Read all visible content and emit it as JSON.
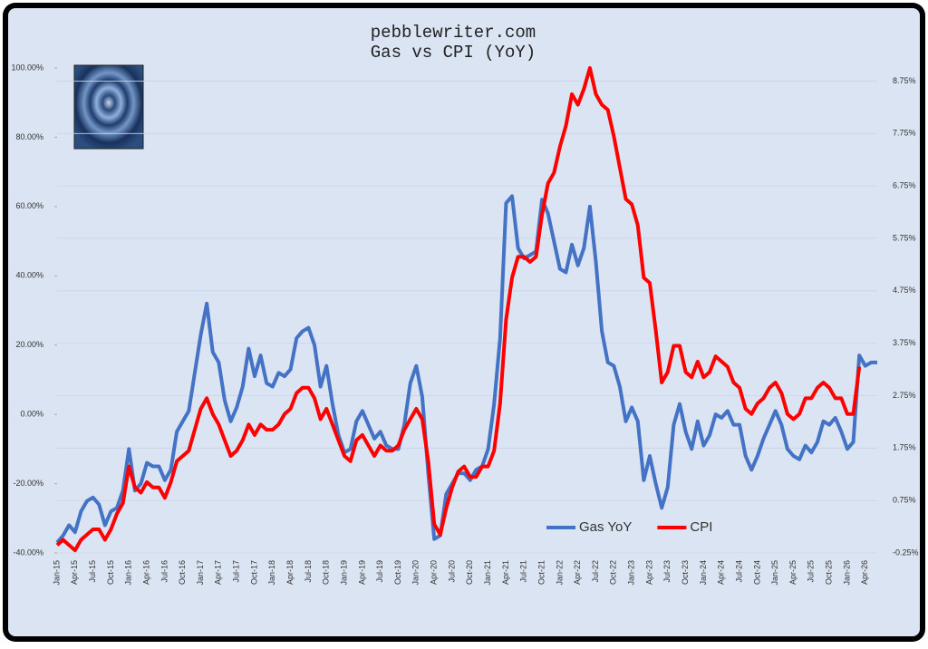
{
  "chart_data": {
    "type": "line",
    "title": "pebblewriter.com",
    "subtitle": "Gas vs CPI (YoY)",
    "categories": [
      "Jan-15",
      null,
      null,
      "Apr-15",
      null,
      null,
      "Jul-15",
      null,
      null,
      "Oct-15",
      null,
      null,
      "Jan-16",
      null,
      null,
      "Apr-16",
      null,
      null,
      "Jul-16",
      null,
      null,
      "Oct-16",
      null,
      null,
      "Jan-17",
      null,
      null,
      "Apr-17",
      null,
      null,
      "Jul-17",
      null,
      null,
      "Oct-17",
      null,
      null,
      "Jan-18",
      null,
      null,
      "Apr-18",
      null,
      null,
      "Jul-18",
      null,
      null,
      "Oct-18",
      null,
      null,
      "Jan-19",
      null,
      null,
      "Apr-19",
      null,
      null,
      "Jul-19",
      null,
      null,
      "Oct-19",
      null,
      null,
      "Jan-20",
      null,
      null,
      "Apr-20",
      null,
      null,
      "Jul-20",
      null,
      null,
      "Oct-20",
      null,
      null,
      "Jan-21",
      null,
      null,
      "Apr-21",
      null,
      null,
      "Jul-21",
      null,
      null,
      "Oct-21",
      null,
      null,
      "Jan-22",
      null,
      null,
      "Apr-22",
      null,
      null,
      "Jul-22",
      null,
      null,
      "Oct-22",
      null,
      null,
      "Jan-23",
      null,
      null,
      "Apr-23",
      null,
      null,
      "Jul-23",
      null,
      null,
      "Oct-23",
      null,
      null,
      "Jan-24",
      null,
      null,
      "Apr-24",
      null,
      null,
      "Jul-24",
      null,
      null,
      "Oct-24",
      null,
      null,
      "Jan-25",
      null,
      null,
      "Apr-25",
      null,
      null,
      "Jul-25",
      null,
      null,
      "Oct-25",
      null,
      null,
      "Jan-26",
      null,
      null,
      "Apr-26",
      null,
      null
    ],
    "series": [
      {
        "name": "Gas YoY",
        "color": "#4472c4",
        "axis": "y",
        "values": [
          -37,
          -35,
          -32,
          -34,
          -28,
          -25,
          -24,
          -26,
          -32,
          -28,
          -27,
          -22,
          -10,
          -22,
          -20,
          -14,
          -15,
          -15,
          -19,
          -16,
          -5,
          -2,
          1,
          12,
          23,
          32,
          18,
          15,
          4,
          -2,
          2,
          8,
          19,
          11,
          17,
          9,
          8,
          12,
          11,
          13,
          22,
          24,
          25,
          20,
          8,
          14,
          3,
          -6,
          -11,
          -10,
          -2,
          1,
          -3,
          -7,
          -5,
          -9,
          -10,
          -10,
          -3,
          9,
          14,
          5,
          -17,
          -36,
          -35,
          -23,
          -20,
          -17,
          -17,
          -19,
          -16,
          -15,
          -10,
          3,
          22,
          61,
          63,
          48,
          45,
          46,
          47,
          62,
          58,
          50,
          42,
          41,
          49,
          43,
          48,
          60,
          44,
          24,
          15,
          14,
          8,
          -2,
          2,
          -2,
          -19,
          -12,
          -20,
          -27,
          -21,
          -3,
          3,
          -5,
          -10,
          -2,
          -9,
          -6,
          0,
          -1,
          1,
          -3,
          -3,
          -12,
          -16,
          -12,
          -7,
          -3,
          1,
          -3,
          -10,
          -12,
          -13,
          -9,
          -11,
          -8,
          -2,
          -3,
          -1,
          -5,
          -10,
          -8,
          17,
          14,
          15,
          15
        ]
      },
      {
        "name": "CPI",
        "color": "#ff0000",
        "axis": "y2",
        "values": [
          -0.1,
          0.0,
          -0.1,
          -0.2,
          0.0,
          0.1,
          0.2,
          0.2,
          0.0,
          0.2,
          0.5,
          0.7,
          1.4,
          1.0,
          0.9,
          1.1,
          1.0,
          1.0,
          0.8,
          1.1,
          1.5,
          1.6,
          1.7,
          2.1,
          2.5,
          2.7,
          2.4,
          2.2,
          1.9,
          1.6,
          1.7,
          1.9,
          2.2,
          2.0,
          2.2,
          2.1,
          2.1,
          2.2,
          2.4,
          2.5,
          2.8,
          2.9,
          2.9,
          2.7,
          2.3,
          2.5,
          2.2,
          1.9,
          1.6,
          1.5,
          1.9,
          2.0,
          1.8,
          1.6,
          1.8,
          1.7,
          1.7,
          1.8,
          2.1,
          2.3,
          2.5,
          2.3,
          1.5,
          0.3,
          0.1,
          0.6,
          1.0,
          1.3,
          1.4,
          1.2,
          1.2,
          1.4,
          1.4,
          1.7,
          2.6,
          4.2,
          5.0,
          5.4,
          5.4,
          5.3,
          5.4,
          6.2,
          6.8,
          7.0,
          7.5,
          7.9,
          8.5,
          8.3,
          8.6,
          9.0,
          8.5,
          8.3,
          8.2,
          7.7,
          7.1,
          6.5,
          6.4,
          6.0,
          5.0,
          4.9,
          4.0,
          3.0,
          3.2,
          3.7,
          3.7,
          3.2,
          3.1,
          3.4,
          3.1,
          3.2,
          3.5,
          3.4,
          3.3,
          3.0,
          2.9,
          2.5,
          2.4,
          2.6,
          2.7,
          2.9,
          3.0,
          2.8,
          2.4,
          2.3,
          2.4,
          2.7,
          2.7,
          2.9,
          3.0,
          2.9,
          2.7,
          2.7,
          2.4,
          2.4,
          3.3,
          null,
          null,
          null
        ]
      }
    ],
    "ylim": [
      -40,
      100
    ],
    "yticks": [
      {
        "value": -40,
        "label": "-40.00%"
      },
      {
        "value": -20,
        "label": "-20.00%"
      },
      {
        "value": 0,
        "label": "0.00%"
      },
      {
        "value": 20,
        "label": "20.00%"
      },
      {
        "value": 40,
        "label": "40.00%"
      },
      {
        "value": 60,
        "label": "60.00%"
      },
      {
        "value": 80,
        "label": "80.00%"
      },
      {
        "value": 100,
        "label": "100.00%"
      }
    ],
    "y2lim": [
      -0.25,
      9.0
    ],
    "y2ticks": [
      {
        "value": -0.25,
        "label": "-0.25%"
      },
      {
        "value": 0.75,
        "label": "0.75%"
      },
      {
        "value": 1.75,
        "label": "1.75%"
      },
      {
        "value": 2.75,
        "label": "2.75%"
      },
      {
        "value": 3.75,
        "label": "3.75%"
      },
      {
        "value": 4.75,
        "label": "4.75%"
      },
      {
        "value": 5.75,
        "label": "5.75%"
      },
      {
        "value": 6.75,
        "label": "6.75%"
      },
      {
        "value": 7.75,
        "label": "7.75%"
      },
      {
        "value": 8.75,
        "label": "8.75%"
      }
    ],
    "grid": true,
    "legend": "lower right"
  }
}
